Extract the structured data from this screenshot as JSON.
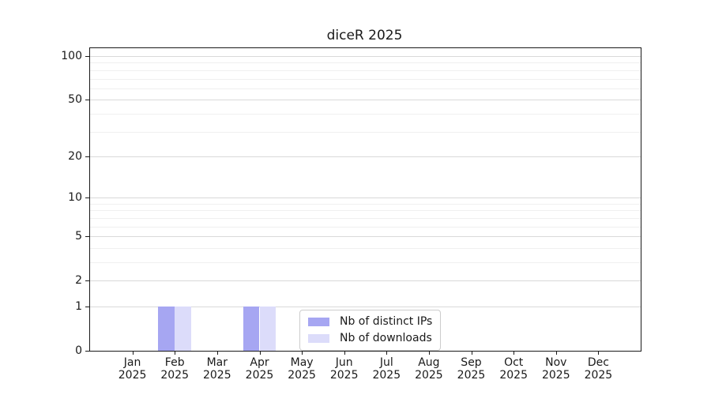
{
  "figure": {
    "title": "diceR 2025"
  },
  "chart_data": {
    "type": "bar",
    "title": "diceR 2025",
    "categories": [
      "Jan",
      "Feb",
      "Mar",
      "Apr",
      "May",
      "Jun",
      "Jul",
      "Aug",
      "Sep",
      "Oct",
      "Nov",
      "Dec"
    ],
    "category_year": "2025",
    "xlabel": "",
    "ylabel": "",
    "series": [
      {
        "name": "Nb of distinct IPs",
        "color": "#a6a6f2",
        "values": [
          0,
          1,
          0,
          1,
          0,
          0,
          0,
          0,
          0,
          0,
          0,
          0
        ]
      },
      {
        "name": "Nb of downloads",
        "color": "#dcdcfa",
        "values": [
          0,
          1,
          0,
          1,
          0,
          0,
          0,
          0,
          0,
          0,
          0,
          0
        ]
      }
    ],
    "yscale": "log1p",
    "ylim": [
      0,
      113.3
    ],
    "y_major_ticks": [
      0,
      1,
      2,
      5,
      10,
      20,
      50,
      100
    ],
    "y_minor_gridlines": [
      3,
      4,
      6,
      7,
      8,
      9,
      30,
      40,
      60,
      70,
      80,
      90
    ],
    "grid": "horizontal",
    "legend_position": "lower-center"
  },
  "colors": {
    "bar_distinct_ips": "#a6a6f2",
    "bar_downloads": "#dcdcfa",
    "grid_major": "#d9d9d9",
    "grid_minor": "#f0f0f0",
    "spine": "#1a1a1a",
    "text": "#1a1a1a",
    "legend_border": "#cccccc"
  }
}
